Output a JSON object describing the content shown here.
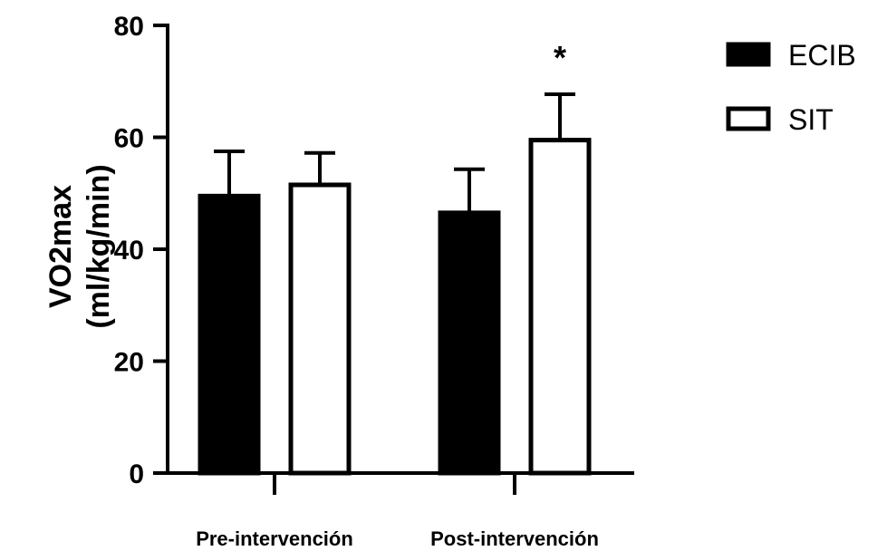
{
  "chart_data": {
    "type": "bar",
    "categories": [
      "Pre-intervención",
      "Post-intervención"
    ],
    "series": [
      {
        "name": "ECIB",
        "values": [
          49.5,
          46.5
        ],
        "errors": [
          8,
          7.8
        ],
        "fill": "#000000"
      },
      {
        "name": "SIT",
        "values": [
          51.5,
          59.5
        ],
        "errors": [
          5.7,
          8.2
        ],
        "fill": "#ffffff"
      }
    ],
    "ylabel_lines": [
      "VO2max",
      "(ml/kg/min)"
    ],
    "xlabel": "",
    "ylim": [
      0,
      80
    ],
    "yticks": [
      0,
      20,
      40,
      60,
      80
    ],
    "annotations": [
      {
        "text": "*",
        "category": "Post-intervención",
        "series": "SIT"
      }
    ],
    "legend_position": "top-right",
    "grid": false
  }
}
